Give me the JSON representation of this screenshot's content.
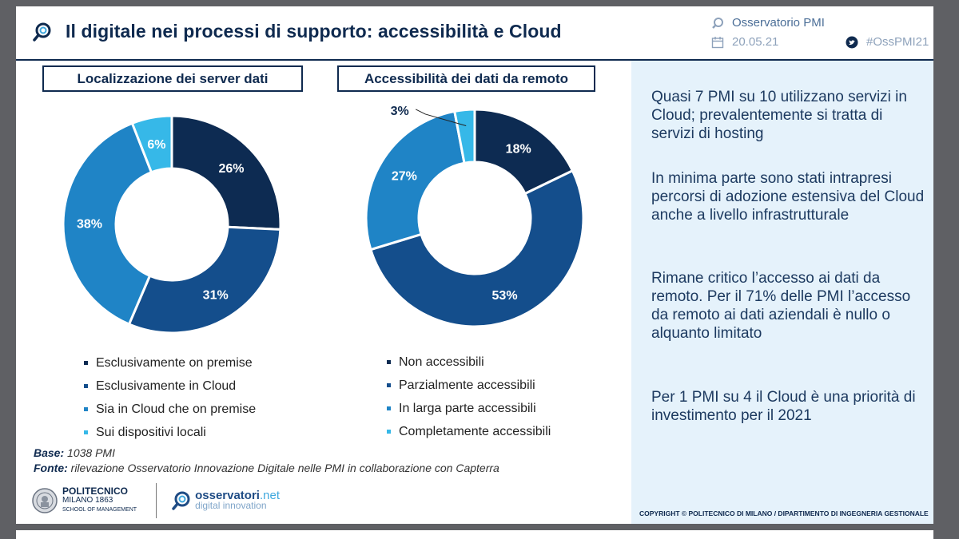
{
  "header": {
    "title": "Il digitale nei processi di supporto: accessibilità e Cloud",
    "observatory": "Osservatorio PMI",
    "date": "20.05.21",
    "hashtag": "#OssPMI21"
  },
  "chart_data": [
    {
      "type": "pie",
      "title": "Localizzazione dei server dati",
      "categories": [
        "Esclusivamente on premise",
        "Esclusivamente in Cloud",
        "Sia in Cloud che on premise",
        "Sui dispositivi locali"
      ],
      "values": [
        26,
        31,
        38,
        6
      ],
      "labels": [
        "26%",
        "31%",
        "38%",
        "6%"
      ],
      "colors": [
        "#0d2b52",
        "#144e8c",
        "#1f84c6",
        "#36b8e8"
      ],
      "label_colors": [
        "#ffffff",
        "#ffffff",
        "#ffffff",
        "#ffffff"
      ]
    },
    {
      "type": "pie",
      "title": "Accessibilità dei dati da remoto",
      "categories": [
        "Non accessibili",
        "Parzialmente accessibili",
        "In larga parte accessibili",
        "Completamente accessibili"
      ],
      "values": [
        18,
        53,
        27,
        3
      ],
      "labels": [
        "18%",
        "53%",
        "27%",
        "3%"
      ],
      "colors": [
        "#0d2b52",
        "#144e8c",
        "#1f84c6",
        "#36b8e8"
      ],
      "label_colors": [
        "#ffffff",
        "#ffffff",
        "#ffffff",
        "#0f2a4f"
      ]
    }
  ],
  "source": {
    "base_label": "Base:",
    "base_value": "1038 PMI",
    "fonte_label": "Fonte:",
    "fonte_value": "rilevazione Osservatorio Innovazione Digitale nelle PMI in collaborazione con Capterra"
  },
  "logos": {
    "polimi_name": "POLITECNICO",
    "polimi_city": "MILANO 1863",
    "polimi_school": "SCHOOL OF MANAGEMENT",
    "oss_name": "osservatori",
    "oss_tld": ".net",
    "oss_sub": "digital innovation"
  },
  "panel": {
    "paragraphs": [
      "Quasi 7 PMI su 10 utilizzano servizi in Cloud; prevalentemente si tratta di servizi di hosting",
      "In minima parte sono stati intrapresi percorsi di adozione estensiva del Cloud anche a livello infrastrutturale",
      "Rimane critico l’accesso ai dati da remoto. Per il 71% delle PMI l’accesso da remoto ai dati aziendali è nullo o alquanto limitato",
      "Per 1 PMI su 4 il Cloud è una priorità di investimento per il 2021"
    ]
  },
  "copyright": "COPYRIGHT © POLITECNICO DI MILANO / DIPARTIMENTO DI INGEGNERIA GESTIONALE"
}
